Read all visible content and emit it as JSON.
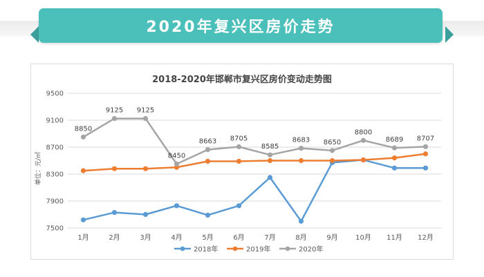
{
  "banner": {
    "title": "2020年复兴区房价走势"
  },
  "colors": {
    "banner": "#4bbfba",
    "series": [
      "#5b9bd5",
      "#ed7d31",
      "#a5a5a5"
    ]
  },
  "chart_data": {
    "type": "line",
    "title": "2018-2020年邯郸市复兴区房价变动走势图",
    "ylabel": "单位：元/㎡",
    "ylim": [
      7500,
      9500
    ],
    "yticks": [
      7500,
      7900,
      8300,
      8700,
      9100,
      9500
    ],
    "grid": true,
    "legend_position": "bottom",
    "categories": [
      "1月",
      "2月",
      "3月",
      "4月",
      "5月",
      "6月",
      "7月",
      "8月",
      "9月",
      "10月",
      "11月",
      "12月"
    ],
    "series": [
      {
        "name": "2018年",
        "values": [
          7620,
          7730,
          7700,
          7830,
          7690,
          7830,
          8250,
          7600,
          8470,
          8510,
          8390,
          8390
        ]
      },
      {
        "name": "2019年",
        "values": [
          8350,
          8380,
          8380,
          8400,
          8490,
          8490,
          8500,
          8500,
          8500,
          8510,
          8540,
          8600
        ]
      },
      {
        "name": "2020年",
        "values": [
          8850,
          9125,
          9125,
          8450,
          8663,
          8705,
          8585,
          8683,
          8650,
          8800,
          8689,
          8707
        ],
        "labels": [
          "8850",
          "9125",
          "9125",
          "8450",
          "8663",
          "8705",
          "8585",
          "8683",
          "8650",
          "8800",
          "8689",
          "8707"
        ]
      }
    ]
  }
}
